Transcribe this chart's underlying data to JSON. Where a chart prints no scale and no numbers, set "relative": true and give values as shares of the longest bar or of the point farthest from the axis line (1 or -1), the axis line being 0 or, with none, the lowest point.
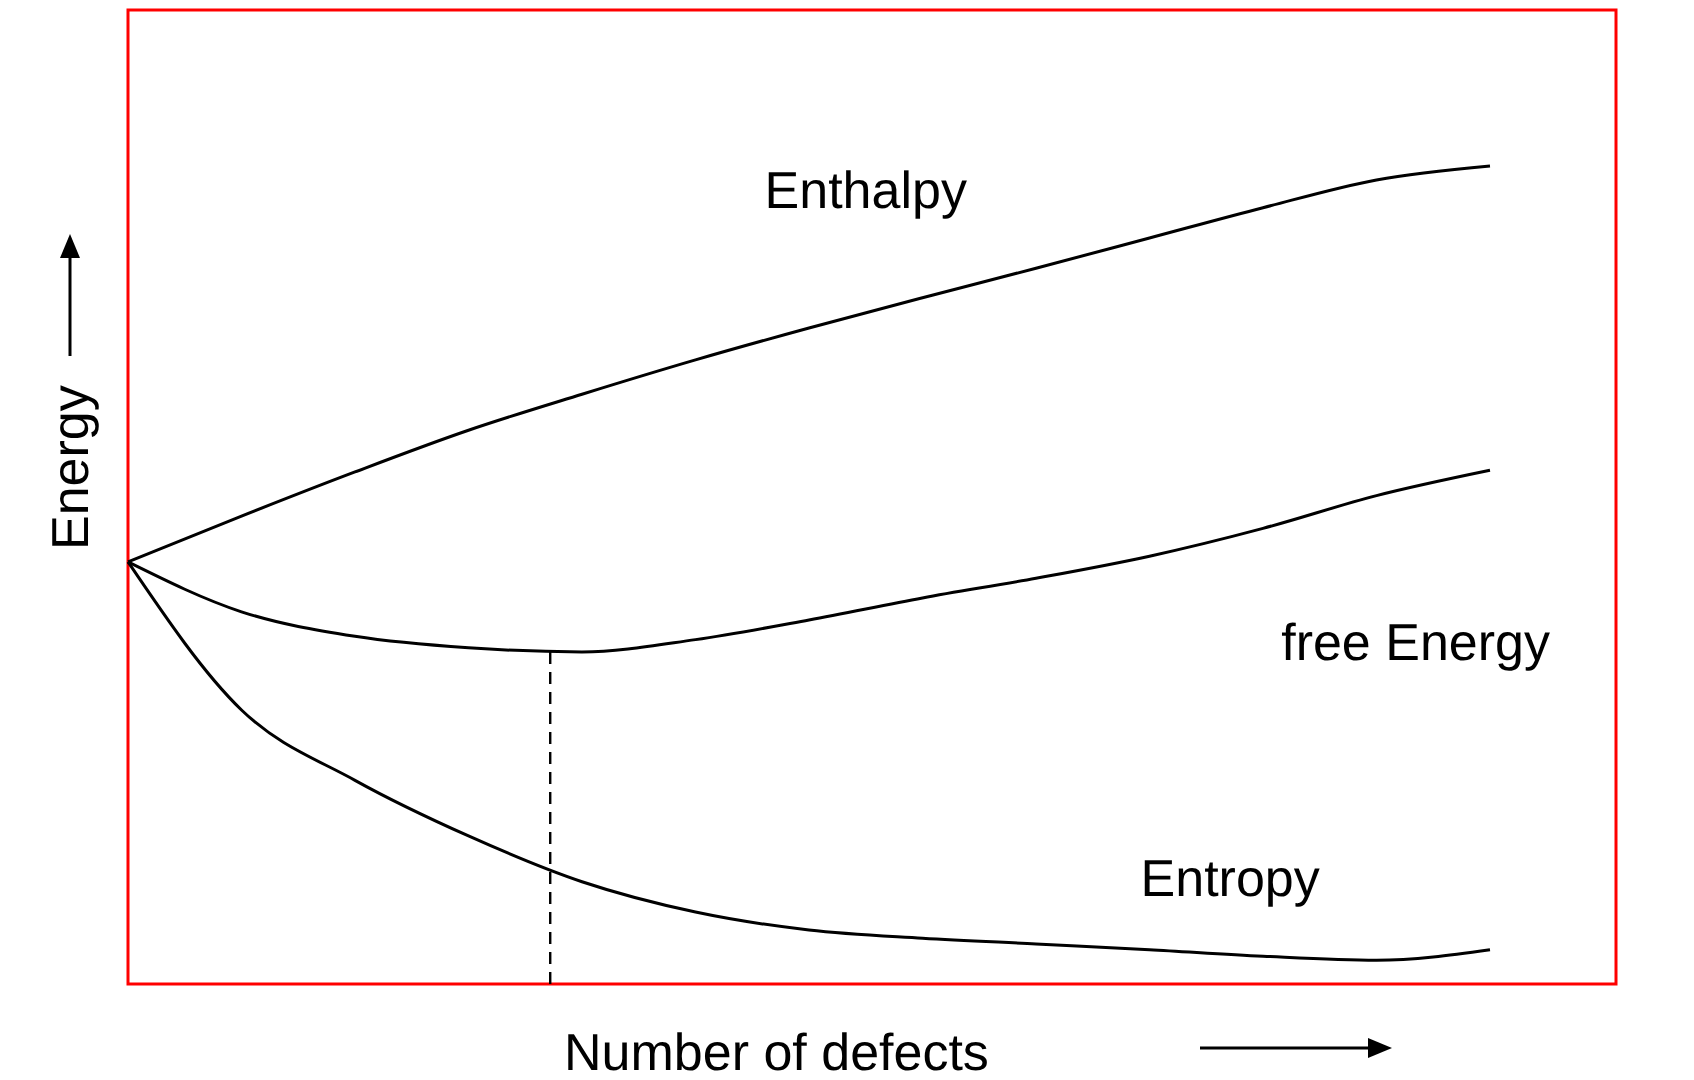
{
  "chart_data": {
    "type": "line",
    "relative": true,
    "xlabel": "Number of defects",
    "ylabel": "Energy",
    "categories": [
      null,
      null,
      null,
      null,
      null,
      null,
      null,
      null,
      null,
      null,
      null,
      null,
      null
    ],
    "series": [
      {
        "name": "Enthalpy",
        "color": "#000000",
        "values": [
          0.516,
          0.572,
          0.626,
          0.677,
          0.721,
          0.763,
          0.802,
          0.839,
          0.875,
          0.912,
          0.949,
          0.983,
          1
        ]
      },
      {
        "name": "free Energy",
        "color": "#000000",
        "values": [
          0.516,
          0.455,
          0.425,
          0.411,
          0.406,
          0.421,
          0.445,
          0.472,
          0.496,
          0.523,
          0.557,
          0.597,
          0.628
        ]
      },
      {
        "name": "Entropy",
        "color": "#000000",
        "values": [
          0.516,
          0.335,
          0.249,
          0.181,
          0.125,
          0.088,
          0.066,
          0.056,
          0.049,
          0.042,
          0.034,
          0.029,
          0.042
        ]
      }
    ],
    "marker": "none",
    "line_style": "solid"
  }
}
